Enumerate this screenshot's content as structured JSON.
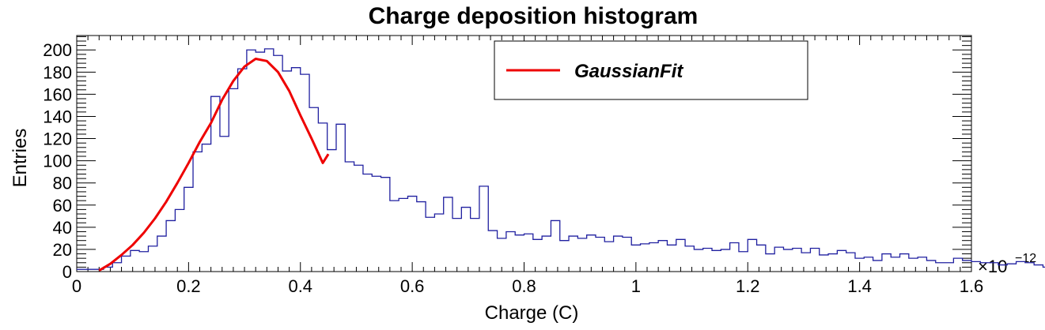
{
  "chart_data": {
    "type": "bar",
    "title": "Charge deposition histogram",
    "xlabel": "Charge (C)",
    "ylabel": "Entries",
    "x_scale_label": "×10",
    "x_scale_exponent": "−12",
    "xlim": [
      0,
      1.6
    ],
    "ylim": [
      0,
      213
    ],
    "x_tick_labels": [
      "0",
      "0.2",
      "0.4",
      "0.6",
      "0.8",
      "1",
      "1.2",
      "1.4",
      "1.6"
    ],
    "y_tick_labels": [
      "0",
      "20",
      "40",
      "60",
      "80",
      "100",
      "120",
      "140",
      "160",
      "180",
      "200"
    ],
    "grid": false,
    "legend_position": "top-right",
    "colors": {
      "histogram": "#2020a0",
      "fit": "#ee0000",
      "frame": "#000000"
    },
    "histogram": {
      "name": "",
      "bin_width": 0.016,
      "bin_edges_start": 0.0,
      "values": [
        2,
        2,
        2,
        4,
        8,
        14,
        19,
        18,
        23,
        32,
        46,
        56,
        76,
        108,
        115,
        158,
        122,
        165,
        183,
        200,
        198,
        201,
        195,
        181,
        184,
        178,
        148,
        134,
        110,
        133,
        99,
        96,
        88,
        86,
        85,
        64,
        66,
        68,
        63,
        49,
        52,
        67,
        48,
        58,
        48,
        77,
        37,
        30,
        36,
        33,
        34,
        29,
        32,
        46,
        28,
        32,
        30,
        33,
        31,
        27,
        32,
        31,
        24,
        25,
        26,
        28,
        24,
        29,
        23,
        20,
        21,
        19,
        20,
        26,
        18,
        29,
        24,
        16,
        22,
        20,
        21,
        17,
        21,
        15,
        16,
        19,
        17,
        12,
        13,
        10,
        16,
        13,
        16,
        12,
        13,
        10,
        8,
        8,
        12,
        10,
        9,
        8,
        8,
        6,
        7,
        9,
        8,
        6,
        4,
        2,
        3
      ]
    },
    "series": [
      {
        "name": "GaussianFit",
        "type": "line",
        "x": [
          0.04,
          0.06,
          0.08,
          0.1,
          0.12,
          0.14,
          0.16,
          0.18,
          0.2,
          0.22,
          0.24,
          0.26,
          0.28,
          0.3,
          0.32,
          0.34,
          0.36,
          0.38,
          0.4,
          0.42,
          0.44,
          0.45
        ],
        "y": [
          1,
          7,
          15,
          24,
          35,
          48,
          63,
          80,
          98,
          117,
          134,
          155,
          172,
          185,
          192,
          190,
          180,
          163,
          141,
          120,
          98,
          106
        ]
      }
    ]
  }
}
